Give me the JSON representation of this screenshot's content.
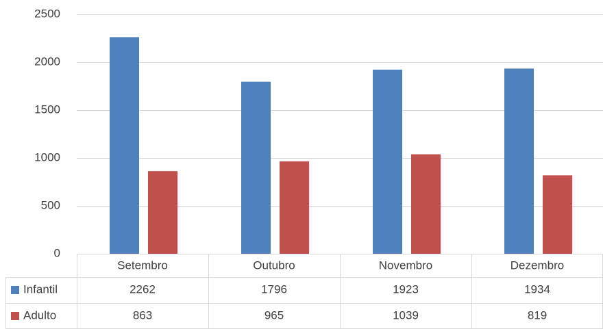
{
  "chart_data": {
    "type": "bar",
    "categories": [
      "Setembro",
      "Outubro",
      "Novembro",
      "Dezembro"
    ],
    "series": [
      {
        "name": "Infantil",
        "color": "#4f81bd",
        "values": [
          2262,
          1796,
          1923,
          1934
        ]
      },
      {
        "name": "Adulto",
        "color": "#c0504d",
        "values": [
          863,
          965,
          1039,
          819
        ]
      }
    ],
    "ylim": [
      0,
      2500
    ],
    "yticks": [
      0,
      500,
      1000,
      1500,
      2000,
      2500
    ],
    "grid": true
  }
}
